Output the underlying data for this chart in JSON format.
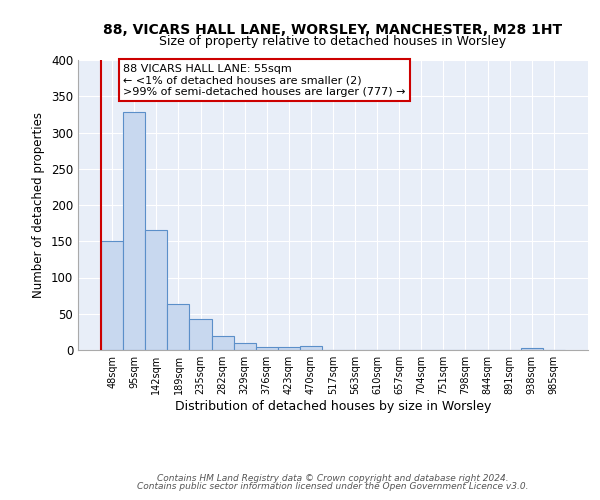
{
  "title1": "88, VICARS HALL LANE, WORSLEY, MANCHESTER, M28 1HT",
  "title2": "Size of property relative to detached houses in Worsley",
  "xlabel": "Distribution of detached houses by size in Worsley",
  "ylabel": "Number of detached properties",
  "categories": [
    "48sqm",
    "95sqm",
    "142sqm",
    "189sqm",
    "235sqm",
    "282sqm",
    "329sqm",
    "376sqm",
    "423sqm",
    "470sqm",
    "517sqm",
    "563sqm",
    "610sqm",
    "657sqm",
    "704sqm",
    "751sqm",
    "798sqm",
    "844sqm",
    "891sqm",
    "938sqm",
    "985sqm"
  ],
  "values": [
    150,
    328,
    165,
    63,
    43,
    20,
    9,
    4,
    4,
    5,
    0,
    0,
    0,
    0,
    0,
    0,
    0,
    0,
    0,
    3,
    0
  ],
  "bar_color": "#c8d8ef",
  "bar_edge_color": "#5b8fc9",
  "annotation_text": "88 VICARS HALL LANE: 55sqm\n← <1% of detached houses are smaller (2)\n>99% of semi-detached houses are larger (777) →",
  "footnote1": "Contains HM Land Registry data © Crown copyright and database right 2024.",
  "footnote2": "Contains public sector information licensed under the Open Government Licence v3.0.",
  "ylim": [
    0,
    400
  ],
  "yticks": [
    0,
    50,
    100,
    150,
    200,
    250,
    300,
    350,
    400
  ],
  "background_color": "#e8eef8",
  "grid_color": "#ffffff",
  "annotation_box_edge": "#cc0000",
  "red_line_color": "#cc0000"
}
